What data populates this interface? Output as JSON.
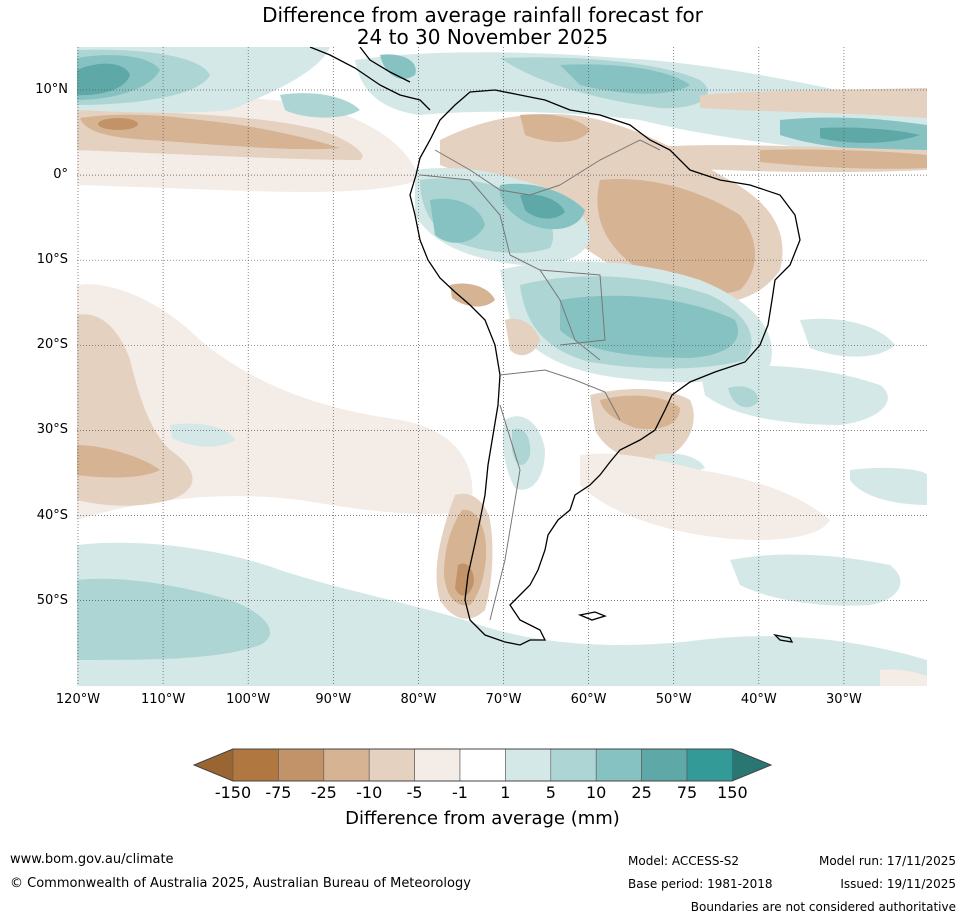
{
  "title": {
    "line1": "Difference from average rainfall forecast for",
    "line2": "24 to 30 November 2025"
  },
  "map": {
    "region": "South America",
    "lat_labels": [
      "10°N",
      "0°",
      "10°S",
      "20°S",
      "30°S",
      "40°S",
      "50°S"
    ],
    "lon_labels": [
      "120°W",
      "110°W",
      "100°W",
      "90°W",
      "80°W",
      "70°W",
      "60°W",
      "50°W",
      "40°W",
      "30°W"
    ]
  },
  "legend": {
    "title": "Difference from average (mm)",
    "ticks": [
      "-150",
      "-75",
      "-25",
      "-10",
      "-5",
      "-1",
      "1",
      "5",
      "10",
      "25",
      "75",
      "150"
    ],
    "colors": {
      "extend_low": "#9a6530",
      "bins": [
        "#b07840",
        "#c29368",
        "#d5b393",
        "#e5d1c0",
        "#f4ece6",
        "#ffffff",
        "#d4e8e7",
        "#acd5d4",
        "#86c2c1",
        "#5ea9a8",
        "#339a97"
      ],
      "extend_high": "#2a7673"
    }
  },
  "footer": {
    "website": "www.bom.gov.au/climate",
    "copyright": "© Commonwealth of Australia 2025, Australian Bureau of Meteorology",
    "model": "Model: ACCESS-S2",
    "base_period": "Base period: 1981-2018",
    "model_run": "Model run: 17/11/2025",
    "issued": "Issued: 19/11/2025",
    "disclaimer": "Boundaries are not considered authoritative"
  }
}
